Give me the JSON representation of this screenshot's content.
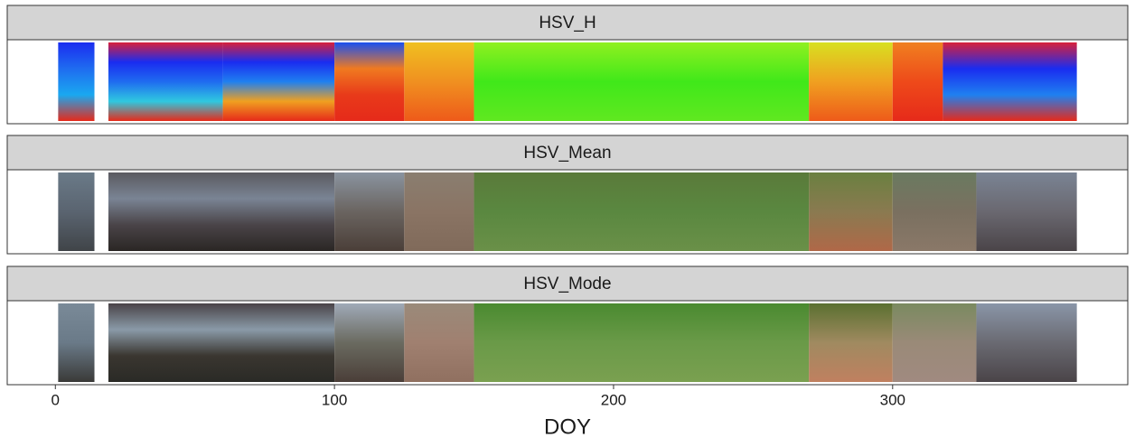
{
  "chart_data": {
    "type": "raster",
    "x_label": "DOY",
    "xlim": [
      -17.25,
      384.25
    ],
    "xticks": [
      0,
      100,
      200,
      300
    ],
    "panels": [
      {
        "title": "HSV_H",
        "bands": [
          {
            "x": [
              1,
              14
            ],
            "colors": [
              "#1a2cf0",
              "#1f6cf0",
              "#1aa8f0",
              "#e62a1a"
            ]
          },
          {
            "x": [
              19,
              60
            ],
            "colors": [
              "#d8203a",
              "#1a2cf0",
              "#1f6cf0",
              "#2fc8e0",
              "#e62a1a"
            ]
          },
          {
            "x": [
              60,
              100
            ],
            "colors": [
              "#d8203a",
              "#1a2cf0",
              "#1f80f0",
              "#f0a020",
              "#e62a1a"
            ]
          },
          {
            "x": [
              100,
              125
            ],
            "colors": [
              "#1a50f0",
              "#f07a20",
              "#e83a1a",
              "#e62a1a"
            ]
          },
          {
            "x": [
              125,
              150
            ],
            "colors": [
              "#f0c020",
              "#f09020",
              "#ee5a1a"
            ]
          },
          {
            "x": [
              150,
              270
            ],
            "colors": [
              "#90f020",
              "#40e81a",
              "#60e820"
            ]
          },
          {
            "x": [
              270,
              300
            ],
            "colors": [
              "#d8e020",
              "#f0a020",
              "#ee5a1a"
            ]
          },
          {
            "x": [
              300,
              318
            ],
            "colors": [
              "#f08020",
              "#ee4a1a",
              "#e62a1a"
            ]
          },
          {
            "x": [
              318,
              366
            ],
            "colors": [
              "#d8203a",
              "#1a2cf0",
              "#1f80f0",
              "#e62a1a"
            ]
          }
        ]
      },
      {
        "title": "HSV_Mean",
        "bands": [
          {
            "x": [
              1,
              14
            ],
            "colors": [
              "#6a7a88",
              "#5a6470",
              "#404448"
            ]
          },
          {
            "x": [
              19,
              100
            ],
            "colors": [
              "#5a5a60",
              "#7a8494",
              "#4a4448",
              "#2a2624"
            ]
          },
          {
            "x": [
              100,
              125
            ],
            "colors": [
              "#8a94a0",
              "#6a6460",
              "#4a3e38"
            ]
          },
          {
            "x": [
              125,
              150
            ],
            "colors": [
              "#8a7e70",
              "#8a7464",
              "#806a5a"
            ]
          },
          {
            "x": [
              150,
              270
            ],
            "colors": [
              "#5a7a3a",
              "#5a8840",
              "#6a9048"
            ]
          },
          {
            "x": [
              270,
              300
            ],
            "colors": [
              "#6a8040",
              "#8a7a50",
              "#b06848"
            ]
          },
          {
            "x": [
              300,
              330
            ],
            "colors": [
              "#6a7a60",
              "#7a7060",
              "#8a7868"
            ]
          },
          {
            "x": [
              330,
              366
            ],
            "colors": [
              "#7a8494",
              "#6a6870",
              "#4a4448"
            ]
          }
        ]
      },
      {
        "title": "HSV_Mode",
        "bands": [
          {
            "x": [
              1,
              14
            ],
            "colors": [
              "#7a8a98",
              "#6a7a88",
              "#3a3a38"
            ]
          },
          {
            "x": [
              19,
              100
            ],
            "colors": [
              "#4a4448",
              "#8a9aa8",
              "#3a3630",
              "#2a2a26"
            ]
          },
          {
            "x": [
              100,
              125
            ],
            "colors": [
              "#a0aab8",
              "#6a6a60",
              "#4a3e38"
            ]
          },
          {
            "x": [
              125,
              150
            ],
            "colors": [
              "#9a8a7a",
              "#a08070",
              "#907060"
            ]
          },
          {
            "x": [
              150,
              270
            ],
            "colors": [
              "#4a8a30",
              "#6a9a48",
              "#7aa050"
            ]
          },
          {
            "x": [
              270,
              300
            ],
            "colors": [
              "#5a7030",
              "#a08a60",
              "#c08060"
            ]
          },
          {
            "x": [
              300,
              330
            ],
            "colors": [
              "#7a8a60",
              "#9a8a78",
              "#a08a80"
            ]
          },
          {
            "x": [
              330,
              366
            ],
            "colors": [
              "#8a96a8",
              "#6a6a72",
              "#4a4448"
            ]
          }
        ]
      }
    ]
  }
}
